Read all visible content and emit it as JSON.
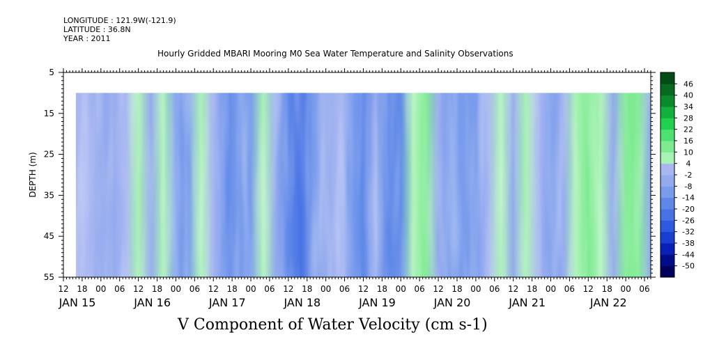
{
  "header": {
    "longitude": "LONGITUDE : 121.9W(-121.9)",
    "latitude": "LATITUDE : 36.8N",
    "year": "YEAR : 2011"
  },
  "chart_data": {
    "type": "heatmap",
    "title": "Hourly Gridded MBARI Mooring M0 Sea Water Temperature and Salinity Observations",
    "xlabel": "",
    "ylabel": "DEPTH (m)",
    "colorbar_label": "V Component of Water Velocity (cm s-1)",
    "ylim": [
      55,
      5
    ],
    "yticks": [
      5,
      15,
      25,
      35,
      45,
      55
    ],
    "xlim_hours": [
      0,
      186
    ],
    "xticks": [
      {
        "h": 0,
        "label": "12"
      },
      {
        "h": 6,
        "label": "18"
      },
      {
        "h": 12,
        "label": "00"
      },
      {
        "h": 18,
        "label": "06"
      },
      {
        "h": 24,
        "label": "12"
      },
      {
        "h": 30,
        "label": "18"
      },
      {
        "h": 36,
        "label": "00"
      },
      {
        "h": 42,
        "label": "06"
      },
      {
        "h": 48,
        "label": "12"
      },
      {
        "h": 54,
        "label": "18"
      },
      {
        "h": 60,
        "label": "00"
      },
      {
        "h": 66,
        "label": "06"
      },
      {
        "h": 72,
        "label": "12"
      },
      {
        "h": 78,
        "label": "18"
      },
      {
        "h": 84,
        "label": "00"
      },
      {
        "h": 90,
        "label": "06"
      },
      {
        "h": 96,
        "label": "12"
      },
      {
        "h": 102,
        "label": "18"
      },
      {
        "h": 108,
        "label": "00"
      },
      {
        "h": 114,
        "label": "06"
      },
      {
        "h": 120,
        "label": "12"
      },
      {
        "h": 126,
        "label": "18"
      },
      {
        "h": 132,
        "label": "00"
      },
      {
        "h": 138,
        "label": "06"
      },
      {
        "h": 144,
        "label": "12"
      },
      {
        "h": 150,
        "label": "18"
      },
      {
        "h": 156,
        "label": "00"
      },
      {
        "h": 162,
        "label": "06"
      },
      {
        "h": 168,
        "label": "12"
      },
      {
        "h": 174,
        "label": "18"
      },
      {
        "h": 180,
        "label": "00"
      },
      {
        "h": 186,
        "label": "06"
      }
    ],
    "day_labels": [
      {
        "h": 0,
        "label": "JAN 15"
      },
      {
        "h": 24,
        "label": "JAN 16"
      },
      {
        "h": 48,
        "label": "JAN 17"
      },
      {
        "h": 72,
        "label": "JAN 18"
      },
      {
        "h": 96,
        "label": "JAN 19"
      },
      {
        "h": 120,
        "label": "JAN 20"
      },
      {
        "h": 144,
        "label": "JAN 21"
      },
      {
        "h": 170,
        "label": "JAN 22"
      }
    ],
    "data_start_hour": 4,
    "data_end_hour": 188,
    "data_top_depth": 10,
    "columns": [
      {
        "h": 4,
        "v": 3
      },
      {
        "h": 8,
        "v": 4
      },
      {
        "h": 12,
        "v": -4
      },
      {
        "h": 16,
        "v": -2
      },
      {
        "h": 20,
        "v": 4
      },
      {
        "h": 24,
        "v": 5
      },
      {
        "h": 28,
        "v": -6
      },
      {
        "h": 32,
        "v": 6
      },
      {
        "h": 36,
        "v": -8
      },
      {
        "h": 40,
        "v": -10
      },
      {
        "h": 44,
        "v": 8
      },
      {
        "h": 48,
        "v": 2
      },
      {
        "h": 52,
        "v": -14
      },
      {
        "h": 56,
        "v": -12
      },
      {
        "h": 60,
        "v": -8
      },
      {
        "h": 64,
        "v": 6
      },
      {
        "h": 68,
        "v": -4
      },
      {
        "h": 72,
        "v": -16
      },
      {
        "h": 76,
        "v": -22
      },
      {
        "h": 80,
        "v": -12
      },
      {
        "h": 84,
        "v": -6
      },
      {
        "h": 88,
        "v": 4
      },
      {
        "h": 92,
        "v": -10
      },
      {
        "h": 96,
        "v": -16
      },
      {
        "h": 100,
        "v": -4
      },
      {
        "h": 104,
        "v": -18
      },
      {
        "h": 108,
        "v": -14
      },
      {
        "h": 112,
        "v": 8
      },
      {
        "h": 116,
        "v": 12
      },
      {
        "h": 120,
        "v": -2
      },
      {
        "h": 124,
        "v": -10
      },
      {
        "h": 128,
        "v": -8
      },
      {
        "h": 132,
        "v": -12
      },
      {
        "h": 136,
        "v": 4
      },
      {
        "h": 140,
        "v": 6
      },
      {
        "h": 144,
        "v": -6
      },
      {
        "h": 148,
        "v": 10
      },
      {
        "h": 152,
        "v": 4
      },
      {
        "h": 156,
        "v": -10
      },
      {
        "h": 160,
        "v": -6
      },
      {
        "h": 164,
        "v": 8
      },
      {
        "h": 168,
        "v": 14
      },
      {
        "h": 172,
        "v": 10
      },
      {
        "h": 176,
        "v": -4
      },
      {
        "h": 180,
        "v": 12
      },
      {
        "h": 184,
        "v": 16
      },
      {
        "h": 188,
        "v": -2
      }
    ],
    "colorbar": {
      "levels": [
        "-50",
        "-44",
        "-38",
        "-32",
        "-26",
        "-20",
        "-14",
        "-8",
        "-2",
        "4",
        "10",
        "16",
        "22",
        "28",
        "34",
        "40",
        "46"
      ],
      "colors": [
        "#00005a",
        "#000c88",
        "#0a20b4",
        "#1a3ed2",
        "#2e5ae0",
        "#4872e4",
        "#5e88e8",
        "#7a9cec",
        "#94aaee",
        "#a8b6f2",
        "#a8f2b4",
        "#7eeb92",
        "#4ee070",
        "#22d050",
        "#12b03c",
        "#0a8a2c",
        "#066a20",
        "#044c16"
      ]
    }
  }
}
